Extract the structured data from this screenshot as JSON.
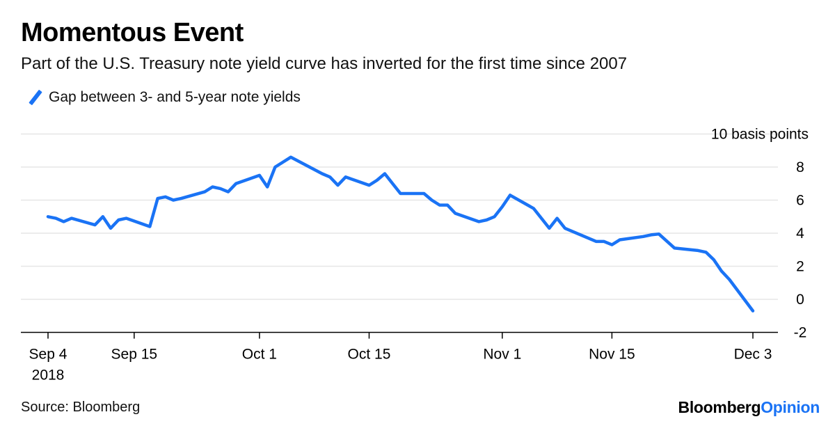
{
  "header": {
    "title": "Momentous Event",
    "subtitle": "Part of the U.S. Treasury note yield curve has inverted for the first time since 2007"
  },
  "footer": {
    "source": "Source: Bloomberg",
    "brand_part1": "Bloomberg",
    "brand_part2": "Opinion"
  },
  "colors": {
    "series": "#1a73f5",
    "grid": "#e6e6e6",
    "axis": "#000000"
  },
  "chart_data": {
    "type": "line",
    "title": "Momentous Event",
    "subtitle": "Part of the U.S. Treasury note yield curve has inverted for the first time since 2007",
    "unit_label": "10 basis points",
    "ylim": [
      -2,
      10
    ],
    "yticks": [
      -2,
      0,
      2,
      4,
      6,
      8
    ],
    "grid": true,
    "legend_position": "top-left",
    "xlim": [
      "2018-09-04",
      "2018-12-03"
    ],
    "xticks": [
      {
        "date": "2018-09-04",
        "label": "Sep 4",
        "sublabel": "2018"
      },
      {
        "date": "2018-09-15",
        "label": "Sep 15",
        "sublabel": ""
      },
      {
        "date": "2018-10-01",
        "label": "Oct 1",
        "sublabel": ""
      },
      {
        "date": "2018-10-15",
        "label": "Oct 15",
        "sublabel": ""
      },
      {
        "date": "2018-11-01",
        "label": "Nov 1",
        "sublabel": ""
      },
      {
        "date": "2018-11-15",
        "label": "Nov 15",
        "sublabel": ""
      },
      {
        "date": "2018-12-03",
        "label": "Dec 3",
        "sublabel": ""
      }
    ],
    "series": [
      {
        "name": "Gap between 3- and 5-year note yields",
        "points": [
          [
            "2018-09-04",
            5.0
          ],
          [
            "2018-09-05",
            4.9
          ],
          [
            "2018-09-06",
            4.7
          ],
          [
            "2018-09-07",
            4.9
          ],
          [
            "2018-09-10",
            4.5
          ],
          [
            "2018-09-11",
            5.0
          ],
          [
            "2018-09-12",
            4.3
          ],
          [
            "2018-09-13",
            4.8
          ],
          [
            "2018-09-14",
            4.9
          ],
          [
            "2018-09-17",
            4.4
          ],
          [
            "2018-09-18",
            6.1
          ],
          [
            "2018-09-19",
            6.2
          ],
          [
            "2018-09-20",
            6.0
          ],
          [
            "2018-09-21",
            6.1
          ],
          [
            "2018-09-24",
            6.5
          ],
          [
            "2018-09-25",
            6.8
          ],
          [
            "2018-09-26",
            6.7
          ],
          [
            "2018-09-27",
            6.5
          ],
          [
            "2018-09-28",
            7.0
          ],
          [
            "2018-10-01",
            7.5
          ],
          [
            "2018-10-02",
            6.8
          ],
          [
            "2018-10-03",
            8.0
          ],
          [
            "2018-10-04",
            8.3
          ],
          [
            "2018-10-05",
            8.6
          ],
          [
            "2018-10-09",
            7.6
          ],
          [
            "2018-10-10",
            7.4
          ],
          [
            "2018-10-11",
            6.9
          ],
          [
            "2018-10-12",
            7.4
          ],
          [
            "2018-10-15",
            6.9
          ],
          [
            "2018-10-16",
            7.2
          ],
          [
            "2018-10-17",
            7.6
          ],
          [
            "2018-10-18",
            7.0
          ],
          [
            "2018-10-19",
            6.4
          ],
          [
            "2018-10-22",
            6.4
          ],
          [
            "2018-10-23",
            6.0
          ],
          [
            "2018-10-24",
            5.7
          ],
          [
            "2018-10-25",
            5.7
          ],
          [
            "2018-10-26",
            5.2
          ],
          [
            "2018-10-29",
            4.7
          ],
          [
            "2018-10-30",
            4.8
          ],
          [
            "2018-10-31",
            5.0
          ],
          [
            "2018-11-01",
            5.6
          ],
          [
            "2018-11-02",
            6.3
          ],
          [
            "2018-11-05",
            5.5
          ],
          [
            "2018-11-06",
            4.9
          ],
          [
            "2018-11-07",
            4.3
          ],
          [
            "2018-11-08",
            4.9
          ],
          [
            "2018-11-09",
            4.3
          ],
          [
            "2018-11-13",
            3.5
          ],
          [
            "2018-11-14",
            3.5
          ],
          [
            "2018-11-15",
            3.3
          ],
          [
            "2018-11-16",
            3.6
          ],
          [
            "2018-11-19",
            3.8
          ],
          [
            "2018-11-20",
            3.9
          ],
          [
            "2018-11-21",
            3.95
          ],
          [
            "2018-11-23",
            3.1
          ],
          [
            "2018-11-26",
            2.95
          ],
          [
            "2018-11-27",
            2.85
          ],
          [
            "2018-11-28",
            2.4
          ],
          [
            "2018-11-29",
            1.7
          ],
          [
            "2018-11-30",
            1.2
          ],
          [
            "2018-12-03",
            -0.7
          ]
        ]
      }
    ]
  }
}
